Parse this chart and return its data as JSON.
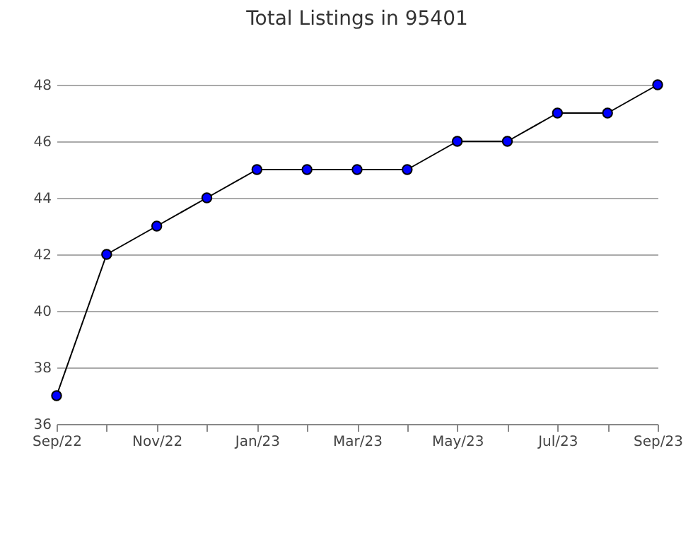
{
  "chart_data": {
    "type": "line",
    "title": "Total Listings in 95401",
    "categories": [
      "Sep/22",
      null,
      "Nov/22",
      null,
      "Jan/23",
      null,
      "Mar/23",
      null,
      "May/23",
      null,
      "Jul/23",
      null,
      "Sep/23"
    ],
    "series": [
      {
        "color": "#0000ff",
        "values": [
          37,
          42,
          43,
          44,
          45,
          45,
          45,
          45,
          46,
          46,
          47,
          47,
          48
        ]
      }
    ],
    "ylim": [
      36,
      48
    ],
    "yticks": [
      36,
      38,
      40,
      42,
      44,
      46,
      48
    ],
    "grid": "y",
    "marker": "circle",
    "line_style": "solid",
    "legend": false
  }
}
